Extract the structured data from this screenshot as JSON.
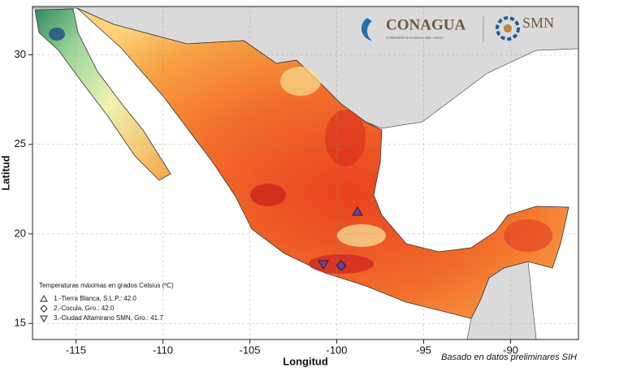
{
  "map": {
    "xlabel": "Longitud",
    "ylabel": "Latitud",
    "xlim": [
      -117.5,
      -86.1
    ],
    "ylim": [
      14.1,
      32.7
    ],
    "xticks": [
      -115,
      -110,
      -105,
      -100,
      -95,
      -90
    ],
    "yticks": [
      15,
      20,
      25,
      30
    ],
    "legend": {
      "title": "Temperaturas máximas en grados Celsius (ºC)",
      "entries": [
        "1.-Tierra Blanca, S.L.P.: 42.0",
        "2.-Cocula, Gro.: 42.0",
        "3.-Ciudad Altamirano SMN, Gro.: 41.7"
      ]
    },
    "note": "Basado en datos preliminares SIH"
  },
  "logos": {
    "conagua": "CONAGUA",
    "conagua_sub": "COMISIÓN NACIONAL DEL AGUA",
    "smn": "SMN"
  }
}
